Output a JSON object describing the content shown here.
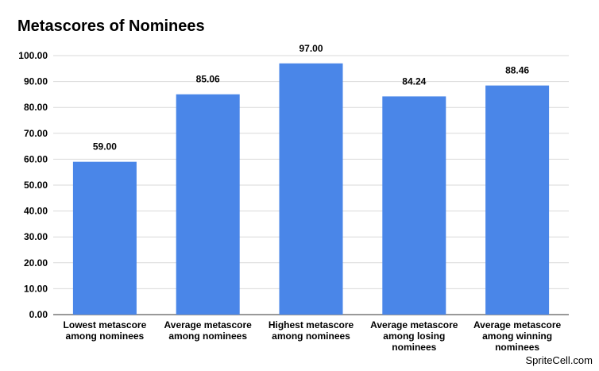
{
  "chart_data": {
    "type": "bar",
    "title": "Metascores of Nominees",
    "categories": [
      [
        "Lowest metascore",
        "among nominees"
      ],
      [
        "Average metascore",
        "among nominees"
      ],
      [
        "Highest metascore",
        "among nominees"
      ],
      [
        "Average metascore",
        "among losing",
        "nominees"
      ],
      [
        "Average metascore",
        "among winning",
        "nominees"
      ]
    ],
    "values": [
      59.0,
      85.06,
      97.0,
      84.24,
      88.46
    ],
    "data_labels": [
      "59.00",
      "85.06",
      "97.00",
      "84.24",
      "88.46"
    ],
    "y_ticks": [
      "0.00",
      "10.00",
      "20.00",
      "30.00",
      "40.00",
      "50.00",
      "60.00",
      "70.00",
      "80.00",
      "90.00",
      "100.00"
    ],
    "ylim": [
      0,
      100
    ],
    "xlabel": "",
    "ylabel": "",
    "grid": true,
    "bar_color": "#4a86e8"
  },
  "watermark": "SpriteCell.com"
}
